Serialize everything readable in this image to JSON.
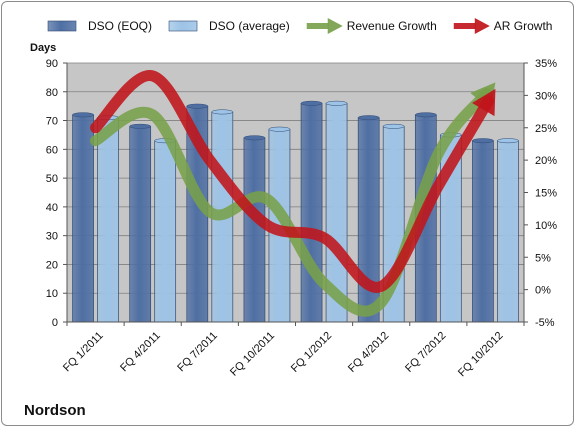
{
  "chart_data": {
    "type": "bar",
    "categories": [
      "FQ 1/2011",
      "FQ 4/2011",
      "FQ 7/2011",
      "FQ 10/2011",
      "FQ 1/2012",
      "FQ 4/2012",
      "FQ 7/2012",
      "FQ 10/2012"
    ],
    "series": [
      {
        "name": "DSO (EOQ)",
        "type": "bar",
        "axis": "left",
        "color": "#4f6fa3",
        "values": [
          72,
          68,
          75,
          64,
          76,
          71,
          72,
          63
        ]
      },
      {
        "name": "DSO (average)",
        "type": "bar",
        "axis": "left",
        "color": "#9dc3e6",
        "values": [
          71,
          63,
          73,
          67,
          76,
          68,
          65,
          63
        ]
      },
      {
        "name": "Revenue Growth",
        "type": "line",
        "axis": "right",
        "unit": "%",
        "color": "#77a04a",
        "values": [
          23,
          27,
          12,
          14,
          1,
          -2,
          21,
          32
        ]
      },
      {
        "name": "AR Growth",
        "type": "line",
        "axis": "right",
        "unit": "%",
        "color": "#c0141a",
        "values": [
          25,
          33,
          20,
          10,
          8,
          0.5,
          16,
          31
        ]
      }
    ],
    "ylabel": "Days",
    "ylim": [
      0,
      90
    ],
    "yticks": [
      0,
      10,
      20,
      30,
      40,
      50,
      60,
      70,
      80,
      90
    ],
    "y2lim": [
      -5,
      35
    ],
    "y2ticks": [
      "-5%",
      "0%",
      "5%",
      "10%",
      "15%",
      "20%",
      "25%",
      "30%",
      "35%"
    ],
    "legend_position": "top",
    "company": "Nordson",
    "plot_background": "#c6c6c6",
    "grid": true
  }
}
